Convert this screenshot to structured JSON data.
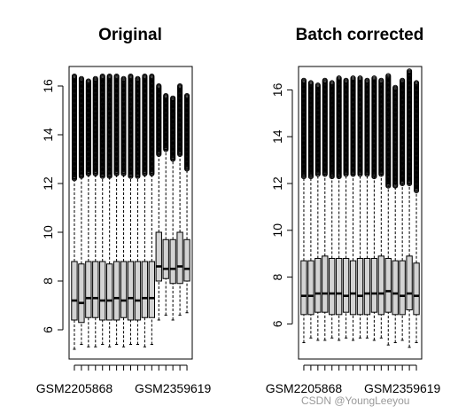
{
  "watermark": "CSDN @YoungLeeyou",
  "chart_data": [
    {
      "type": "boxplot",
      "title": "Original",
      "xlabel": "",
      "ylabel": "",
      "ylim": [
        4.8,
        16.8
      ],
      "yticks": [
        6,
        8,
        10,
        12,
        14,
        16
      ],
      "x_tick_labels": [
        {
          "label": "GSM2205868",
          "position": 1
        },
        {
          "label": "GSM2359619",
          "position": 15
        }
      ],
      "box_color": "#d3d3d3",
      "outlier_marker": "open-circle",
      "boxes": [
        {
          "position": 1,
          "whisker_low": 5.2,
          "q1": 6.4,
          "median": 7.2,
          "q3": 8.8,
          "whisker_high": 12.2,
          "outliers_min": 12.2,
          "outliers_max": 16.4
        },
        {
          "position": 2,
          "whisker_low": 5.4,
          "q1": 6.3,
          "median": 7.1,
          "q3": 8.7,
          "whisker_high": 12.3,
          "outliers_min": 12.3,
          "outliers_max": 16.3
        },
        {
          "position": 3,
          "whisker_low": 5.3,
          "q1": 6.5,
          "median": 7.3,
          "q3": 8.8,
          "whisker_high": 12.4,
          "outliers_min": 12.4,
          "outliers_max": 16.2
        },
        {
          "position": 4,
          "whisker_low": 5.3,
          "q1": 6.5,
          "median": 7.3,
          "q3": 8.8,
          "whisker_high": 12.4,
          "outliers_min": 12.4,
          "outliers_max": 16.3
        },
        {
          "position": 5,
          "whisker_low": 5.4,
          "q1": 6.4,
          "median": 7.2,
          "q3": 8.8,
          "whisker_high": 12.3,
          "outliers_min": 12.3,
          "outliers_max": 16.4
        },
        {
          "position": 6,
          "whisker_low": 5.3,
          "q1": 6.4,
          "median": 7.2,
          "q3": 8.7,
          "whisker_high": 12.3,
          "outliers_min": 12.3,
          "outliers_max": 16.4
        },
        {
          "position": 7,
          "whisker_low": 5.4,
          "q1": 6.4,
          "median": 7.3,
          "q3": 8.8,
          "whisker_high": 12.4,
          "outliers_min": 12.4,
          "outliers_max": 16.4
        },
        {
          "position": 8,
          "whisker_low": 5.3,
          "q1": 6.5,
          "median": 7.2,
          "q3": 8.8,
          "whisker_high": 12.4,
          "outliers_min": 12.4,
          "outliers_max": 16.3
        },
        {
          "position": 9,
          "whisker_low": 5.4,
          "q1": 6.4,
          "median": 7.3,
          "q3": 8.8,
          "whisker_high": 12.3,
          "outliers_min": 12.3,
          "outliers_max": 16.4
        },
        {
          "position": 10,
          "whisker_low": 5.4,
          "q1": 6.4,
          "median": 7.2,
          "q3": 8.8,
          "whisker_high": 12.3,
          "outliers_min": 12.3,
          "outliers_max": 16.3
        },
        {
          "position": 11,
          "whisker_low": 5.3,
          "q1": 6.5,
          "median": 7.3,
          "q3": 8.8,
          "whisker_high": 12.4,
          "outliers_min": 12.4,
          "outliers_max": 16.4
        },
        {
          "position": 12,
          "whisker_low": 5.4,
          "q1": 6.5,
          "median": 7.3,
          "q3": 8.8,
          "whisker_high": 12.4,
          "outliers_min": 12.4,
          "outliers_max": 16.4
        },
        {
          "position": 13,
          "whisker_low": 6.4,
          "q1": 8.0,
          "median": 8.6,
          "q3": 10.0,
          "whisker_high": 13.2,
          "outliers_min": 13.2,
          "outliers_max": 16.0
        },
        {
          "position": 14,
          "whisker_low": 6.6,
          "q1": 8.1,
          "median": 8.5,
          "q3": 9.7,
          "whisker_high": 13.4,
          "outliers_min": 13.4,
          "outliers_max": 15.6
        },
        {
          "position": 15,
          "whisker_low": 6.4,
          "q1": 7.9,
          "median": 8.5,
          "q3": 9.7,
          "whisker_high": 13.0,
          "outliers_min": 13.0,
          "outliers_max": 15.5
        },
        {
          "position": 16,
          "whisker_low": 6.6,
          "q1": 7.9,
          "median": 8.6,
          "q3": 10.0,
          "whisker_high": 13.2,
          "outliers_min": 13.2,
          "outliers_max": 16.0
        },
        {
          "position": 17,
          "whisker_low": 6.7,
          "q1": 8.0,
          "median": 8.5,
          "q3": 9.7,
          "whisker_high": 12.6,
          "outliers_min": 12.6,
          "outliers_max": 15.6
        }
      ]
    },
    {
      "type": "boxplot",
      "title": "Batch corrected",
      "xlabel": "",
      "ylabel": "",
      "ylim": [
        4.5,
        17.0
      ],
      "yticks": [
        6,
        8,
        10,
        12,
        14,
        16
      ],
      "x_tick_labels": [
        {
          "label": "GSM2205868",
          "position": 1
        },
        {
          "label": "GSM2359619",
          "position": 15
        }
      ],
      "box_color": "#d3d3d3",
      "outlier_marker": "open-circle",
      "boxes": [
        {
          "position": 1,
          "whisker_low": 5.2,
          "q1": 6.4,
          "median": 7.2,
          "q3": 8.7,
          "whisker_high": 12.3,
          "outliers_min": 12.3,
          "outliers_max": 16.4
        },
        {
          "position": 2,
          "whisker_low": 5.4,
          "q1": 6.4,
          "median": 7.2,
          "q3": 8.7,
          "whisker_high": 12.3,
          "outliers_min": 12.3,
          "outliers_max": 16.3
        },
        {
          "position": 3,
          "whisker_low": 5.3,
          "q1": 6.5,
          "median": 7.3,
          "q3": 8.8,
          "whisker_high": 12.4,
          "outliers_min": 12.4,
          "outliers_max": 16.2
        },
        {
          "position": 4,
          "whisker_low": 5.3,
          "q1": 6.5,
          "median": 7.3,
          "q3": 8.9,
          "whisker_high": 12.4,
          "outliers_min": 12.4,
          "outliers_max": 16.4
        },
        {
          "position": 5,
          "whisker_low": 5.4,
          "q1": 6.4,
          "median": 7.3,
          "q3": 8.8,
          "whisker_high": 12.3,
          "outliers_min": 12.3,
          "outliers_max": 16.3
        },
        {
          "position": 6,
          "whisker_low": 5.3,
          "q1": 6.4,
          "median": 7.3,
          "q3": 8.8,
          "whisker_high": 12.3,
          "outliers_min": 12.3,
          "outliers_max": 16.5
        },
        {
          "position": 7,
          "whisker_low": 5.4,
          "q1": 6.5,
          "median": 7.2,
          "q3": 8.8,
          "whisker_high": 12.4,
          "outliers_min": 12.4,
          "outliers_max": 16.4
        },
        {
          "position": 8,
          "whisker_low": 5.3,
          "q1": 6.4,
          "median": 7.3,
          "q3": 8.7,
          "whisker_high": 12.4,
          "outliers_min": 12.4,
          "outliers_max": 16.5
        },
        {
          "position": 9,
          "whisker_low": 5.4,
          "q1": 6.4,
          "median": 7.2,
          "q3": 8.8,
          "whisker_high": 12.4,
          "outliers_min": 12.4,
          "outliers_max": 16.5
        },
        {
          "position": 10,
          "whisker_low": 5.4,
          "q1": 6.4,
          "median": 7.3,
          "q3": 8.8,
          "whisker_high": 12.4,
          "outliers_min": 12.4,
          "outliers_max": 16.4
        },
        {
          "position": 11,
          "whisker_low": 5.3,
          "q1": 6.5,
          "median": 7.3,
          "q3": 8.8,
          "whisker_high": 12.3,
          "outliers_min": 12.3,
          "outliers_max": 16.5
        },
        {
          "position": 12,
          "whisker_low": 5.4,
          "q1": 6.4,
          "median": 7.3,
          "q3": 8.9,
          "whisker_high": 12.4,
          "outliers_min": 12.4,
          "outliers_max": 16.4
        },
        {
          "position": 13,
          "whisker_low": 5.1,
          "q1": 6.5,
          "median": 7.4,
          "q3": 8.8,
          "whisker_high": 12.1,
          "outliers_min": 11.9,
          "outliers_max": 16.6
        },
        {
          "position": 14,
          "whisker_low": 5.2,
          "q1": 6.4,
          "median": 7.3,
          "q3": 8.7,
          "whisker_high": 12.2,
          "outliers_min": 11.9,
          "outliers_max": 16.1
        },
        {
          "position": 15,
          "whisker_low": 5.3,
          "q1": 6.4,
          "median": 7.2,
          "q3": 8.7,
          "whisker_high": 12.2,
          "outliers_min": 12.0,
          "outliers_max": 16.4
        },
        {
          "position": 16,
          "whisker_low": 5.0,
          "q1": 6.6,
          "median": 7.3,
          "q3": 8.9,
          "whisker_high": 12.0,
          "outliers_min": 12.0,
          "outliers_max": 16.8
        },
        {
          "position": 17,
          "whisker_low": 5.2,
          "q1": 6.4,
          "median": 7.2,
          "q3": 8.6,
          "whisker_high": 11.8,
          "outliers_min": 11.7,
          "outliers_max": 16.3
        }
      ]
    }
  ]
}
